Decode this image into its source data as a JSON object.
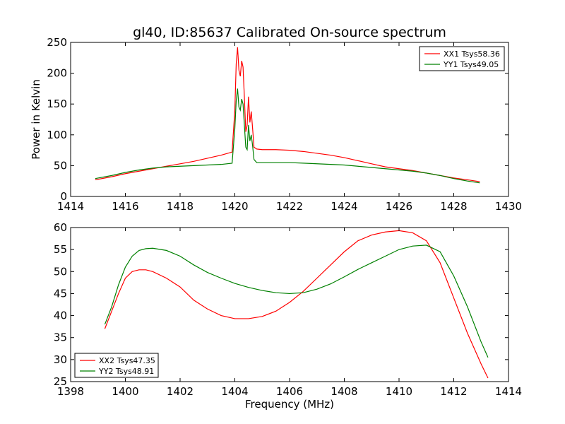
{
  "chart_data": [
    {
      "type": "line",
      "title": "gl40, ID:85637 Calibrated On-source spectrum",
      "xlabel": "",
      "ylabel": "Power in Kelvin",
      "xlim": [
        1414,
        1430
      ],
      "ylim": [
        0,
        250
      ],
      "xticks": [
        1414,
        1416,
        1418,
        1420,
        1422,
        1424,
        1426,
        1428,
        1430
      ],
      "yticks": [
        0,
        50,
        100,
        150,
        200,
        250
      ],
      "legend_position": "top-right",
      "grid": false,
      "series": [
        {
          "name": "XX1 Tsys58.36",
          "color": "#ff0000",
          "points": [
            [
              1414.9,
              27
            ],
            [
              1415.5,
              32
            ],
            [
              1416.0,
              37
            ],
            [
              1416.5,
              41
            ],
            [
              1417.0,
              45
            ],
            [
              1417.5,
              49
            ],
            [
              1418.0,
              53
            ],
            [
              1418.5,
              57
            ],
            [
              1419.0,
              62
            ],
            [
              1419.5,
              67
            ],
            [
              1419.9,
              72
            ],
            [
              1420.0,
              140
            ],
            [
              1420.05,
              215
            ],
            [
              1420.1,
              242
            ],
            [
              1420.15,
              205
            ],
            [
              1420.2,
              195
            ],
            [
              1420.25,
              220
            ],
            [
              1420.3,
              210
            ],
            [
              1420.35,
              160
            ],
            [
              1420.4,
              105
            ],
            [
              1420.45,
              115
            ],
            [
              1420.5,
              162
            ],
            [
              1420.55,
              120
            ],
            [
              1420.6,
              138
            ],
            [
              1420.65,
              110
            ],
            [
              1420.7,
              80
            ],
            [
              1420.8,
              77
            ],
            [
              1421.0,
              76
            ],
            [
              1421.5,
              76
            ],
            [
              1422.0,
              75
            ],
            [
              1422.5,
              73
            ],
            [
              1423.0,
              70
            ],
            [
              1423.5,
              67
            ],
            [
              1424.0,
              63
            ],
            [
              1424.5,
              58
            ],
            [
              1425.0,
              53
            ],
            [
              1425.5,
              48
            ],
            [
              1426.0,
              45
            ],
            [
              1426.5,
              42
            ],
            [
              1427.0,
              38
            ],
            [
              1427.5,
              34
            ],
            [
              1428.0,
              30
            ],
            [
              1428.5,
              27
            ],
            [
              1428.95,
              24
            ]
          ]
        },
        {
          "name": "YY1 Tsys49.05",
          "color": "#008000",
          "points": [
            [
              1414.9,
              29
            ],
            [
              1415.5,
              34
            ],
            [
              1416.0,
              39
            ],
            [
              1416.5,
              43
            ],
            [
              1417.0,
              46
            ],
            [
              1417.5,
              48
            ],
            [
              1418.0,
              49
            ],
            [
              1418.5,
              50
            ],
            [
              1419.0,
              51
            ],
            [
              1419.5,
              52
            ],
            [
              1419.9,
              54
            ],
            [
              1420.0,
              110
            ],
            [
              1420.05,
              155
            ],
            [
              1420.1,
              175
            ],
            [
              1420.15,
              145
            ],
            [
              1420.2,
              140
            ],
            [
              1420.25,
              158
            ],
            [
              1420.3,
              150
            ],
            [
              1420.35,
              115
            ],
            [
              1420.4,
              80
            ],
            [
              1420.45,
              76
            ],
            [
              1420.5,
              116
            ],
            [
              1420.55,
              90
            ],
            [
              1420.6,
              100
            ],
            [
              1420.65,
              82
            ],
            [
              1420.7,
              60
            ],
            [
              1420.8,
              55
            ],
            [
              1421.0,
              55
            ],
            [
              1421.5,
              55
            ],
            [
              1422.0,
              55
            ],
            [
              1422.5,
              54
            ],
            [
              1423.0,
              53
            ],
            [
              1423.5,
              52
            ],
            [
              1424.0,
              51
            ],
            [
              1424.5,
              49
            ],
            [
              1425.0,
              47
            ],
            [
              1425.5,
              45
            ],
            [
              1426.0,
              43
            ],
            [
              1426.5,
              41
            ],
            [
              1427.0,
              38
            ],
            [
              1427.5,
              34
            ],
            [
              1428.0,
              29
            ],
            [
              1428.5,
              25
            ],
            [
              1428.95,
              22
            ]
          ]
        }
      ]
    },
    {
      "type": "line",
      "title": "",
      "xlabel": "Frequency (MHz)",
      "ylabel": "",
      "xlim": [
        1398,
        1414
      ],
      "ylim": [
        25,
        60
      ],
      "xticks": [
        1398,
        1400,
        1402,
        1404,
        1406,
        1408,
        1410,
        1412,
        1414
      ],
      "yticks": [
        25,
        30,
        35,
        40,
        45,
        50,
        55,
        60
      ],
      "legend_position": "bottom-left",
      "grid": false,
      "series": [
        {
          "name": "XX2 Tsys47.35",
          "color": "#ff0000",
          "points": [
            [
              1399.25,
              37
            ],
            [
              1399.5,
              41
            ],
            [
              1399.75,
              45
            ],
            [
              1400.0,
              48.5
            ],
            [
              1400.25,
              50
            ],
            [
              1400.5,
              50.4
            ],
            [
              1400.75,
              50.4
            ],
            [
              1401.0,
              50
            ],
            [
              1401.5,
              48.5
            ],
            [
              1402.0,
              46.5
            ],
            [
              1402.5,
              43.5
            ],
            [
              1403.0,
              41.5
            ],
            [
              1403.5,
              40
            ],
            [
              1404.0,
              39.3
            ],
            [
              1404.5,
              39.3
            ],
            [
              1405.0,
              39.8
            ],
            [
              1405.5,
              41
            ],
            [
              1406.0,
              43
            ],
            [
              1406.5,
              45.5
            ],
            [
              1407.0,
              48.5
            ],
            [
              1407.5,
              51.5
            ],
            [
              1408.0,
              54.5
            ],
            [
              1408.5,
              57
            ],
            [
              1409.0,
              58.3
            ],
            [
              1409.5,
              59
            ],
            [
              1410.0,
              59.3
            ],
            [
              1410.5,
              58.8
            ],
            [
              1411.0,
              57
            ],
            [
              1411.5,
              52
            ],
            [
              1412.0,
              44
            ],
            [
              1412.5,
              36
            ],
            [
              1413.0,
              29
            ],
            [
              1413.25,
              25.8
            ]
          ]
        },
        {
          "name": "YY2 Tsys48.91",
          "color": "#008000",
          "points": [
            [
              1399.25,
              38
            ],
            [
              1399.5,
              42
            ],
            [
              1399.75,
              47
            ],
            [
              1400.0,
              51
            ],
            [
              1400.25,
              53.5
            ],
            [
              1400.5,
              54.8
            ],
            [
              1400.75,
              55.2
            ],
            [
              1401.0,
              55.3
            ],
            [
              1401.5,
              54.8
            ],
            [
              1402.0,
              53.5
            ],
            [
              1402.5,
              51.5
            ],
            [
              1403.0,
              49.8
            ],
            [
              1403.5,
              48.5
            ],
            [
              1404.0,
              47.3
            ],
            [
              1404.5,
              46.4
            ],
            [
              1405.0,
              45.7
            ],
            [
              1405.5,
              45.2
            ],
            [
              1406.0,
              45
            ],
            [
              1406.5,
              45.2
            ],
            [
              1407.0,
              46
            ],
            [
              1407.5,
              47.2
            ],
            [
              1408.0,
              48.8
            ],
            [
              1408.5,
              50.5
            ],
            [
              1409.0,
              52
            ],
            [
              1409.5,
              53.5
            ],
            [
              1410.0,
              55
            ],
            [
              1410.5,
              55.8
            ],
            [
              1411.0,
              56
            ],
            [
              1411.5,
              54.5
            ],
            [
              1412.0,
              49
            ],
            [
              1412.5,
              42
            ],
            [
              1413.0,
              34
            ],
            [
              1413.25,
              30.5
            ]
          ]
        }
      ]
    }
  ]
}
